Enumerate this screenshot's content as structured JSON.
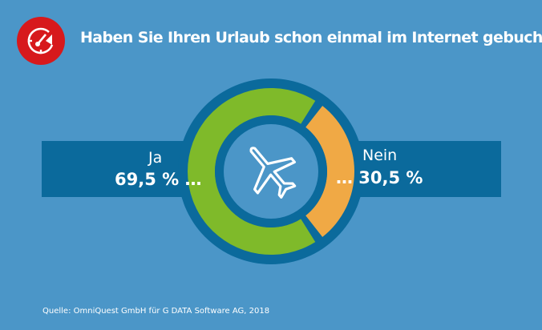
{
  "title": "Haben Sie Ihren Urlaub schon einmal im Internet gebucht?",
  "logo_icon": "speedometer-icon",
  "center_icon": "airplane-icon",
  "chart_data": {
    "type": "pie",
    "title": "Haben Sie Ihren Urlaub schon einmal im Internet gebucht?",
    "donut": true,
    "categories": [
      "Ja",
      "Nein"
    ],
    "values": [
      69.5,
      30.5
    ],
    "value_labels": [
      "69,5 % …",
      "… 30,5 %"
    ],
    "colors": [
      "#7fba2a",
      "#f0a945"
    ]
  },
  "colors": {
    "background": "#4b96c8",
    "band": "#0b6a9c",
    "logo": "#d7191c"
  },
  "source": "Quelle: OmniQuest GmbH für G DATA Software AG, 2018"
}
